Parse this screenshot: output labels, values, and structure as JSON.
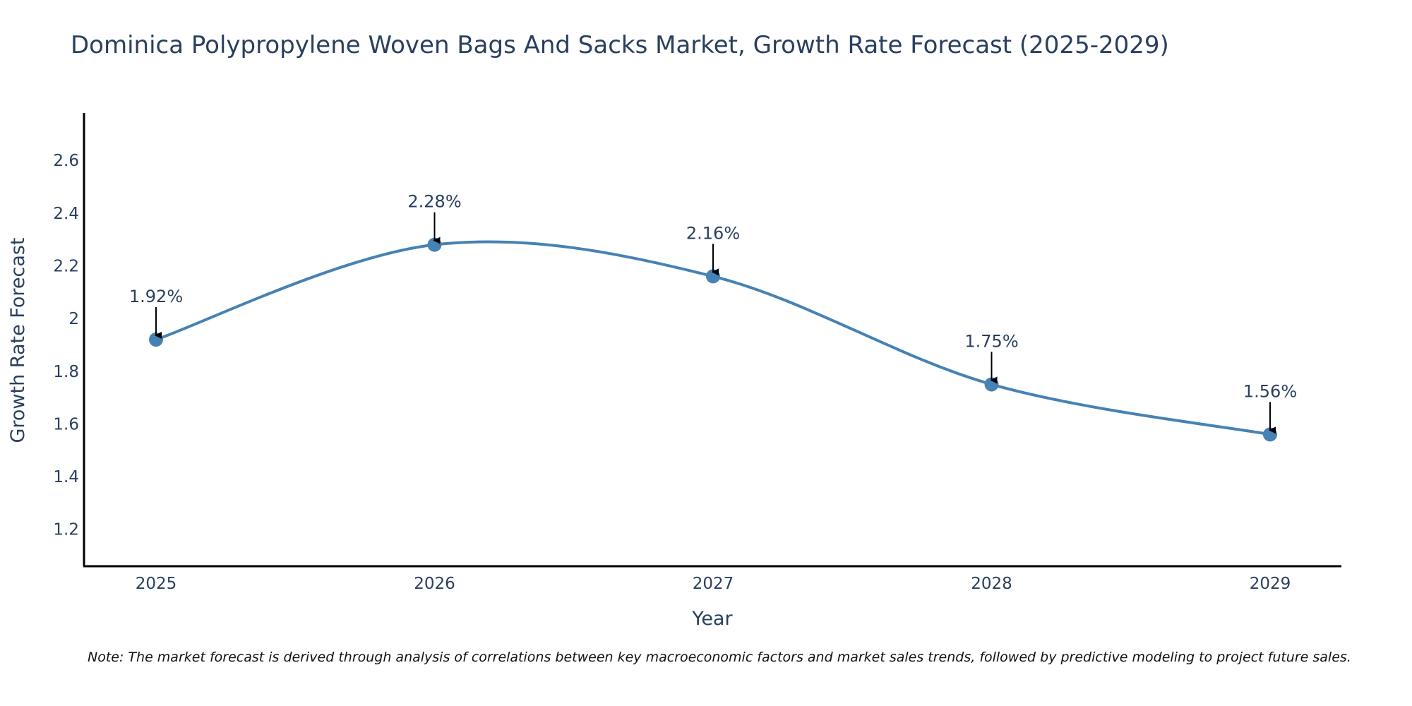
{
  "chart_data": {
    "type": "line",
    "title": "Dominica Polypropylene Woven Bags And Sacks Market, Growth Rate Forecast (2025-2029)",
    "xlabel": "Year",
    "ylabel": "Growth Rate Forecast",
    "categories": [
      "2025",
      "2026",
      "2027",
      "2028",
      "2029"
    ],
    "series": [
      {
        "name": "Growth Rate Forecast",
        "values": [
          1.92,
          2.28,
          2.16,
          1.75,
          1.56
        ]
      }
    ],
    "data_labels": [
      "1.92%",
      "2.28%",
      "2.16%",
      "1.75%",
      "1.56%"
    ],
    "ylim": [
      1.06,
      2.78
    ],
    "yticks": [
      1.2,
      1.4,
      1.6,
      1.8,
      2,
      2.2,
      2.4,
      2.6
    ],
    "ytick_labels": [
      "1.2",
      "1.4",
      "1.6",
      "1.8",
      "2",
      "2.2",
      "2.4",
      "2.6"
    ],
    "grid": false,
    "line_color": "#4682b4",
    "note": "Note: The market forecast is derived through analysis of correlations between key macroeconomic factors and market sales trends, followed by predictive modeling to project future sales."
  }
}
